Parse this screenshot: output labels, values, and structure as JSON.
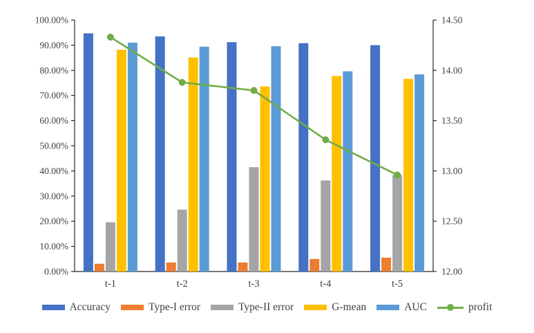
{
  "chart_data": {
    "type": "bar",
    "subtype": "grouped-bar-with-line",
    "title": "",
    "categories": [
      "t-1",
      "t-2",
      "t-3",
      "t-4",
      "t-5"
    ],
    "series": [
      {
        "name": "Accuracy",
        "kind": "bar",
        "axis": "left",
        "color": "#4472C4",
        "values": [
          94.7,
          93.5,
          91.2,
          90.8,
          90.0
        ]
      },
      {
        "name": "Type-I error",
        "kind": "bar",
        "axis": "left",
        "color": "#ED7D31",
        "values": [
          3.1,
          3.6,
          3.6,
          5.0,
          5.5
        ]
      },
      {
        "name": "Type-II error",
        "kind": "bar",
        "axis": "left",
        "color": "#A5A5A5",
        "values": [
          19.6,
          24.6,
          41.5,
          36.2,
          38.4
        ]
      },
      {
        "name": "G-mean",
        "kind": "bar",
        "axis": "left",
        "color": "#FFC000",
        "values": [
          88.2,
          85.1,
          73.6,
          77.8,
          76.6
        ]
      },
      {
        "name": "AUC",
        "kind": "bar",
        "axis": "left",
        "color": "#5B9BD5",
        "values": [
          91.0,
          89.4,
          89.6,
          79.6,
          78.4
        ]
      },
      {
        "name": "profit",
        "kind": "line",
        "axis": "right",
        "color": "#70AD47",
        "values": [
          14.33,
          13.88,
          13.8,
          13.31,
          12.96
        ]
      }
    ],
    "left_axis": {
      "min": 0,
      "max": 100,
      "step": 10,
      "tick_labels": [
        "0.00%",
        "10.00%",
        "20.00%",
        "30.00%",
        "40.00%",
        "50.00%",
        "60.00%",
        "70.00%",
        "80.00%",
        "90.00%",
        "100.00%"
      ]
    },
    "right_axis": {
      "min": 12,
      "max": 14.5,
      "step": 0.5,
      "tick_labels": [
        "12.00",
        "12.50",
        "13.00",
        "13.50",
        "14.00",
        "14.50"
      ]
    },
    "grid": false,
    "legend_position": "bottom",
    "axis_line_color": "#262626",
    "label_color": "#404040"
  }
}
